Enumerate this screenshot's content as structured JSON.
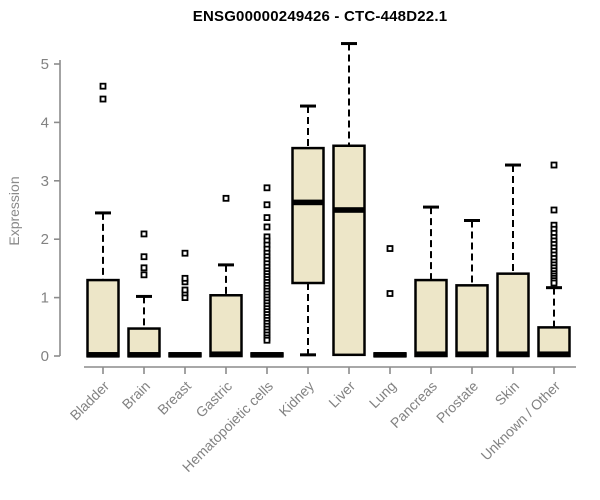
{
  "chart": {
    "title": "ENSG00000249426 - CTC-448D22.1",
    "ylabel": "Expression"
  },
  "chart_data": {
    "type": "boxplot",
    "title": "ENSG00000249426 - CTC-448D22.1",
    "xlabel": "",
    "ylabel": "Expression",
    "ylim": [
      0,
      5.4
    ],
    "yticks": [
      0,
      1,
      2,
      3,
      4,
      5
    ],
    "grid": false,
    "categories": [
      "Bladder",
      "Brain",
      "Breast",
      "Gastric",
      "Hematopoietic cells",
      "Kidney",
      "Liver",
      "Lung",
      "Pancreas",
      "Prostate",
      "Skin",
      "Unknown / Other"
    ],
    "series": [
      {
        "name": "Bladder",
        "q1": 0,
        "median": 0.02,
        "q3": 1.3,
        "whisker_low": 0,
        "whisker_high": 2.45,
        "outliers": [
          4.4,
          4.62
        ]
      },
      {
        "name": "Brain",
        "q1": 0,
        "median": 0.02,
        "q3": 0.47,
        "whisker_low": 0,
        "whisker_high": 1.02,
        "outliers": [
          1.39,
          1.51,
          1.7,
          2.09
        ]
      },
      {
        "name": "Breast",
        "q1": 0,
        "median": 0.02,
        "q3": 0.04,
        "whisker_low": 0,
        "whisker_high": 0.04,
        "outliers": [
          1.0,
          1.08,
          1.13,
          1.27,
          1.33,
          1.76
        ]
      },
      {
        "name": "Gastric",
        "q1": 0,
        "median": 0.03,
        "q3": 1.04,
        "whisker_low": 0,
        "whisker_high": 1.56,
        "outliers": [
          2.7
        ]
      },
      {
        "name": "Hematopoietic cells",
        "q1": 0,
        "median": 0.02,
        "q3": 0.04,
        "whisker_low": 0,
        "whisker_high": 0.04,
        "outliers": [
          2.88,
          2.59,
          2.37,
          2.21,
          2.04,
          1.97,
          1.9,
          1.83,
          1.76,
          1.7,
          1.64,
          1.58,
          1.52,
          1.46,
          1.41,
          1.36,
          1.31,
          1.26,
          1.21,
          1.16,
          1.11,
          1.06,
          1.01,
          0.96,
          0.91,
          0.86,
          0.81,
          0.76,
          0.71,
          0.66,
          0.61,
          0.56,
          0.51,
          0.46,
          0.41,
          0.36,
          0.31,
          0.27
        ]
      },
      {
        "name": "Kidney",
        "q1": 1.25,
        "median": 2.63,
        "q3": 3.56,
        "whisker_low": 0.02,
        "whisker_high": 4.28,
        "outliers": []
      },
      {
        "name": "Liver",
        "q1": 0.02,
        "median": 2.5,
        "q3": 3.6,
        "whisker_low": 0.02,
        "whisker_high": 5.35,
        "outliers": []
      },
      {
        "name": "Lung",
        "q1": 0,
        "median": 0.02,
        "q3": 0.04,
        "whisker_low": 0,
        "whisker_high": 0.04,
        "outliers": [
          1.07,
          1.84
        ]
      },
      {
        "name": "Pancreas",
        "q1": 0,
        "median": 0.03,
        "q3": 1.3,
        "whisker_low": 0,
        "whisker_high": 2.55,
        "outliers": []
      },
      {
        "name": "Prostate",
        "q1": 0,
        "median": 0.03,
        "q3": 1.21,
        "whisker_low": 0,
        "whisker_high": 2.32,
        "outliers": []
      },
      {
        "name": "Skin",
        "q1": 0,
        "median": 0.03,
        "q3": 1.41,
        "whisker_low": 0,
        "whisker_high": 3.27,
        "outliers": []
      },
      {
        "name": "Unknown / Other",
        "q1": 0,
        "median": 0.03,
        "q3": 0.49,
        "whisker_low": 0,
        "whisker_high": 1.17,
        "outliers": [
          3.27,
          2.5,
          2.24,
          2.17,
          2.1,
          2.03,
          1.97,
          1.91,
          1.85,
          1.79,
          1.73,
          1.67,
          1.61,
          1.56,
          1.51,
          1.46,
          1.41,
          1.37,
          1.33,
          1.29,
          1.25
        ]
      }
    ],
    "legend": null,
    "colors": {
      "box_fill": "#EDE6C8",
      "box_border": "#000000",
      "median": "#000000",
      "whisker": "#000000",
      "outlier_fill": "#ffffff",
      "outlier_border": "#000000",
      "axis": "#8C8C8C",
      "tick_labels": "#828282",
      "title": "#000000"
    }
  }
}
